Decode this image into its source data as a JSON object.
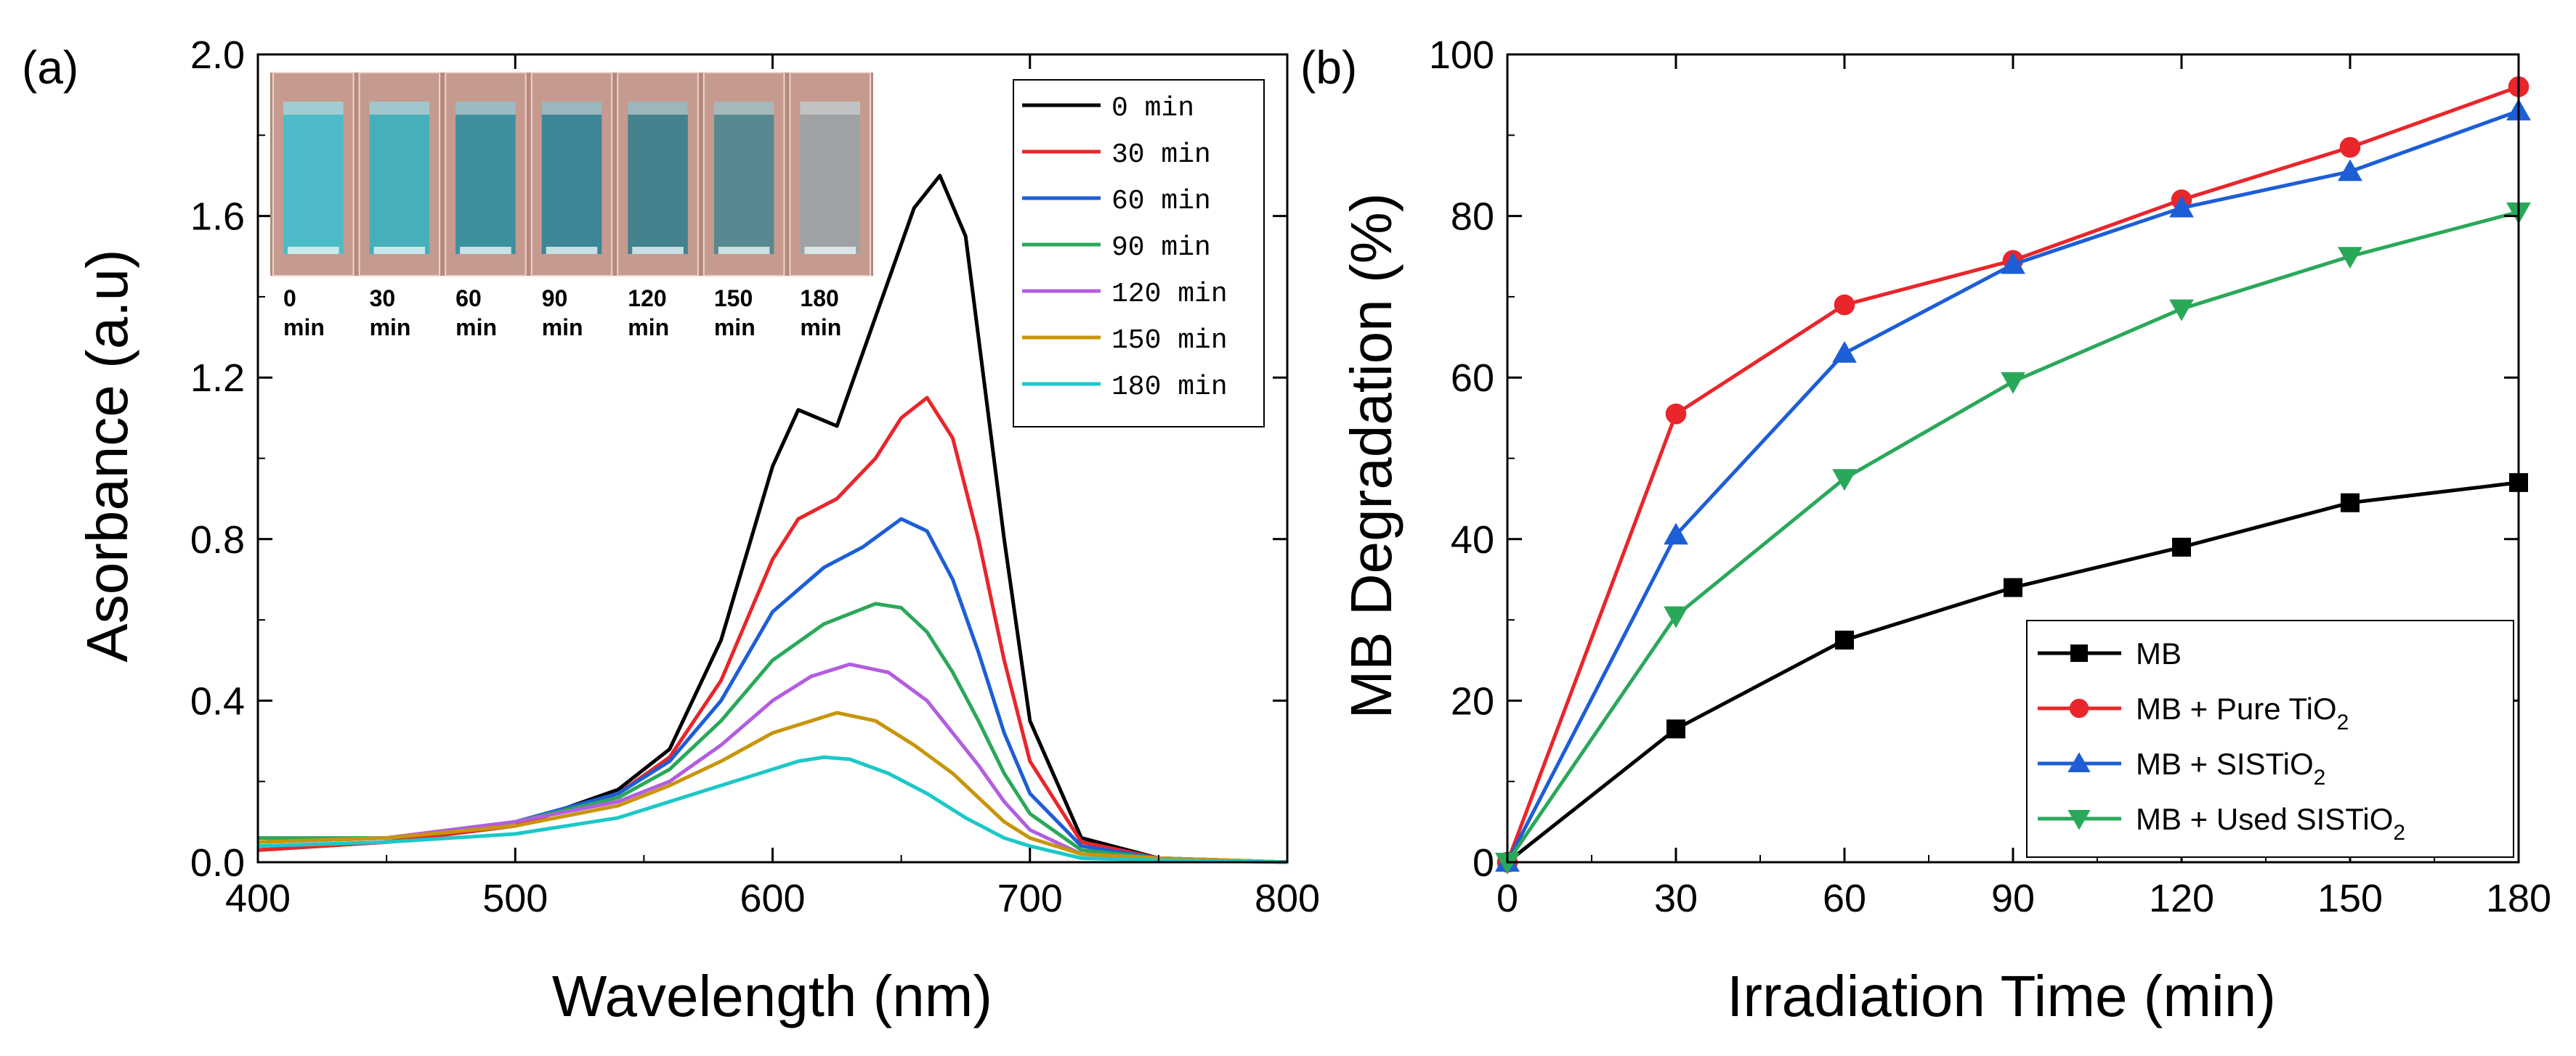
{
  "chart_data": [
    {
      "type": "line",
      "panel_label": "(a)",
      "title": "",
      "xlabel": "Wavelength (nm)",
      "ylabel": "Asorbance (a.u)",
      "xlim": [
        400,
        800
      ],
      "ylim": [
        0,
        2.0
      ],
      "xticks": [
        "400",
        "500",
        "600",
        "700",
        "800"
      ],
      "yticks": [
        "0.0",
        "0.4",
        "0.8",
        "1.2",
        "1.6",
        "2.0"
      ],
      "grid": false,
      "legend_position": "top-right",
      "series": [
        {
          "name": "0 min",
          "color": "#000000",
          "x": [
            400,
            450,
            500,
            540,
            560,
            580,
            600,
            610,
            625,
            640,
            655,
            665,
            675,
            690,
            700,
            720,
            750,
            800
          ],
          "y": [
            0.03,
            0.05,
            0.09,
            0.18,
            0.28,
            0.55,
            0.98,
            1.12,
            1.08,
            1.35,
            1.62,
            1.7,
            1.55,
            0.8,
            0.35,
            0.06,
            0.01,
            0.0
          ]
        },
        {
          "name": "30 min",
          "color": "#e8262b",
          "x": [
            400,
            450,
            500,
            540,
            560,
            580,
            600,
            610,
            625,
            640,
            650,
            660,
            670,
            680,
            690,
            700,
            720,
            750,
            800
          ],
          "y": [
            0.03,
            0.05,
            0.09,
            0.17,
            0.26,
            0.45,
            0.75,
            0.85,
            0.9,
            1.0,
            1.1,
            1.15,
            1.05,
            0.8,
            0.5,
            0.25,
            0.05,
            0.01,
            0.0
          ]
        },
        {
          "name": "60 min",
          "color": "#1d5ed6",
          "x": [
            400,
            450,
            500,
            540,
            560,
            580,
            600,
            620,
            635,
            650,
            660,
            670,
            680,
            690,
            700,
            720,
            750,
            800
          ],
          "y": [
            0.05,
            0.06,
            0.1,
            0.17,
            0.25,
            0.4,
            0.62,
            0.73,
            0.78,
            0.85,
            0.82,
            0.7,
            0.52,
            0.32,
            0.17,
            0.04,
            0.01,
            0.0
          ]
        },
        {
          "name": "90 min",
          "color": "#2aa85a",
          "x": [
            400,
            450,
            500,
            540,
            560,
            580,
            600,
            620,
            640,
            650,
            660,
            670,
            680,
            690,
            700,
            720,
            750,
            800
          ],
          "y": [
            0.06,
            0.06,
            0.1,
            0.16,
            0.23,
            0.35,
            0.5,
            0.59,
            0.64,
            0.63,
            0.57,
            0.47,
            0.35,
            0.22,
            0.12,
            0.03,
            0.01,
            0.0
          ]
        },
        {
          "name": "120 min",
          "color": "#b35de0",
          "x": [
            400,
            450,
            500,
            540,
            560,
            580,
            600,
            615,
            630,
            645,
            660,
            670,
            680,
            690,
            700,
            720,
            750,
            800
          ],
          "y": [
            0.05,
            0.06,
            0.1,
            0.15,
            0.2,
            0.29,
            0.4,
            0.46,
            0.49,
            0.47,
            0.4,
            0.32,
            0.24,
            0.15,
            0.08,
            0.02,
            0.01,
            0.0
          ]
        },
        {
          "name": "150 min",
          "color": "#c8950a",
          "x": [
            400,
            450,
            500,
            540,
            560,
            580,
            600,
            615,
            625,
            640,
            655,
            670,
            680,
            690,
            700,
            720,
            750,
            800
          ],
          "y": [
            0.05,
            0.06,
            0.09,
            0.14,
            0.19,
            0.25,
            0.32,
            0.35,
            0.37,
            0.35,
            0.29,
            0.22,
            0.16,
            0.1,
            0.06,
            0.02,
            0.01,
            0.0
          ]
        },
        {
          "name": "180 min",
          "color": "#1cc8c8",
          "x": [
            400,
            450,
            500,
            540,
            560,
            580,
            600,
            610,
            620,
            630,
            645,
            660,
            675,
            690,
            700,
            720,
            750,
            800
          ],
          "y": [
            0.04,
            0.05,
            0.07,
            0.11,
            0.15,
            0.19,
            0.23,
            0.25,
            0.26,
            0.255,
            0.22,
            0.17,
            0.11,
            0.06,
            0.04,
            0.01,
            0.005,
            0.0
          ]
        }
      ],
      "inset": {
        "labels": [
          [
            "0",
            "min"
          ],
          [
            "30",
            "min"
          ],
          [
            "60",
            "min"
          ],
          [
            "90",
            "min"
          ],
          [
            "120",
            "min"
          ],
          [
            "150",
            "min"
          ],
          [
            "180",
            "min"
          ]
        ],
        "solution_colors": [
          "#3fc0ce",
          "#39b0c0",
          "#2f8fa0",
          "#2d8498",
          "#357f8f",
          "#4a8790",
          "#9aa3a6"
        ]
      }
    },
    {
      "type": "line",
      "panel_label": "(b)",
      "title": "",
      "xlabel": "Irradiation Time (min)",
      "ylabel": "MB Degradation (%)",
      "xlim": [
        0,
        180
      ],
      "ylim": [
        0,
        100
      ],
      "xticks": [
        "0",
        "30",
        "60",
        "90",
        "120",
        "150",
        "180"
      ],
      "yticks": [
        "0",
        "20",
        "40",
        "60",
        "80",
        "100"
      ],
      "grid": false,
      "legend_position": "bottom-right",
      "x": [
        0,
        30,
        60,
        90,
        120,
        150,
        180
      ],
      "series": [
        {
          "name": "MB",
          "color": "#000000",
          "marker": "square",
          "values": [
            0,
            16.5,
            27.5,
            34,
            39,
            44.5,
            47
          ]
        },
        {
          "name": "MB + Pure TiO₂",
          "label_main": "MB + Pure TiO",
          "label_sub": "2",
          "color": "#e8262b",
          "marker": "circle",
          "values": [
            0,
            55.5,
            69,
            74.5,
            82,
            88.5,
            96
          ]
        },
        {
          "name": "MB + SISTiO₂",
          "label_main": "MB + SISTiO",
          "label_sub": "2",
          "color": "#1d5ed6",
          "marker": "triangle-up",
          "values": [
            0,
            40.5,
            63,
            74,
            81,
            85.5,
            93
          ]
        },
        {
          "name": "MB + Used SISTiO₂",
          "label_main": "MB + Used SISTiO",
          "label_sub": "2",
          "color": "#2aa85a",
          "marker": "triangle-down",
          "values": [
            0,
            30.5,
            47.5,
            59.5,
            68.5,
            75,
            80.5
          ]
        }
      ]
    }
  ]
}
